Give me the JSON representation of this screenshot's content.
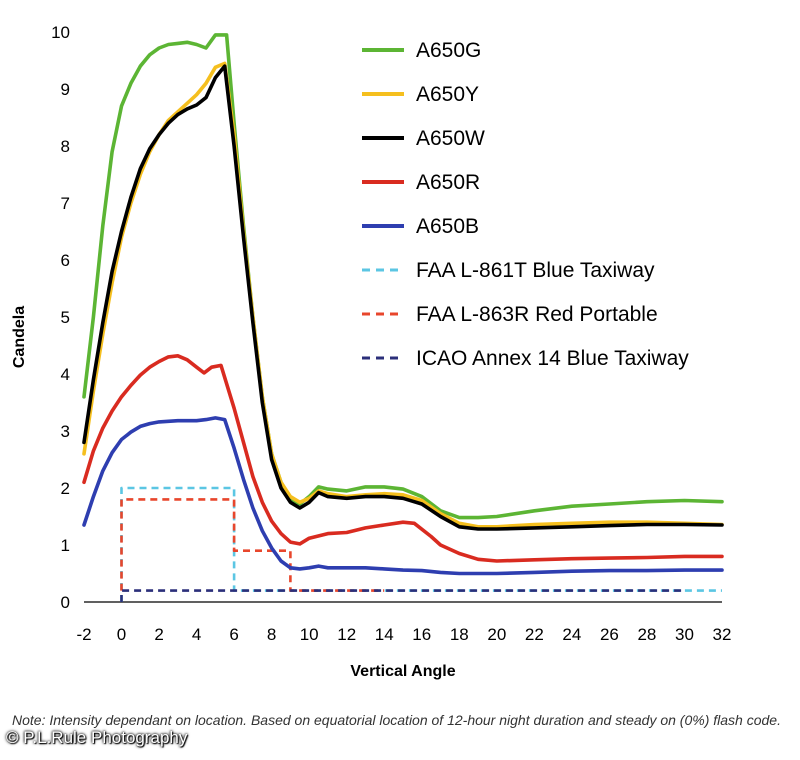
{
  "chart_data": {
    "type": "line",
    "xlabel": "Vertical Angle",
    "ylabel": "Candela",
    "xlim": [
      -2,
      32
    ],
    "ylim": [
      0,
      10
    ],
    "xticks": [
      "-2",
      "0",
      "2",
      "4",
      "6",
      "8",
      "10",
      "12",
      "14",
      "16",
      "18",
      "20",
      "22",
      "24",
      "26",
      "28",
      "30",
      "32"
    ],
    "yticks": [
      "0",
      "1",
      "2",
      "3",
      "4",
      "5",
      "6",
      "7",
      "8",
      "9",
      "10"
    ],
    "legend_position": "top-right",
    "series": [
      {
        "name": "A650G",
        "color": "#5cb534",
        "style": "solid",
        "points": [
          [
            -2,
            3.6
          ],
          [
            -1.5,
            5.0
          ],
          [
            -1,
            6.6
          ],
          [
            -0.5,
            7.9
          ],
          [
            0,
            8.7
          ],
          [
            0.5,
            9.1
          ],
          [
            1,
            9.4
          ],
          [
            1.5,
            9.6
          ],
          [
            2,
            9.72
          ],
          [
            2.5,
            9.78
          ],
          [
            3,
            9.8
          ],
          [
            3.5,
            9.82
          ],
          [
            4,
            9.78
          ],
          [
            4.5,
            9.72
          ],
          [
            5,
            9.95
          ],
          [
            5.6,
            9.95
          ],
          [
            6,
            8.4
          ],
          [
            6.5,
            6.6
          ],
          [
            7,
            5.0
          ],
          [
            7.5,
            3.6
          ],
          [
            8,
            2.6
          ],
          [
            8.5,
            2.1
          ],
          [
            9,
            1.8
          ],
          [
            9.5,
            1.72
          ],
          [
            10,
            1.85
          ],
          [
            10.5,
            2.02
          ],
          [
            11,
            1.98
          ],
          [
            12,
            1.95
          ],
          [
            13,
            2.02
          ],
          [
            14,
            2.02
          ],
          [
            15,
            1.98
          ],
          [
            16,
            1.85
          ],
          [
            17,
            1.6
          ],
          [
            18,
            1.48
          ],
          [
            19,
            1.48
          ],
          [
            20,
            1.5
          ],
          [
            22,
            1.6
          ],
          [
            24,
            1.68
          ],
          [
            26,
            1.72
          ],
          [
            28,
            1.76
          ],
          [
            30,
            1.78
          ],
          [
            32,
            1.76
          ]
        ]
      },
      {
        "name": "A650Y",
        "color": "#f5bf1e",
        "style": "solid",
        "points": [
          [
            -2,
            2.6
          ],
          [
            -1.5,
            3.7
          ],
          [
            -1,
            4.7
          ],
          [
            -0.5,
            5.6
          ],
          [
            0,
            6.4
          ],
          [
            0.5,
            7.0
          ],
          [
            1,
            7.5
          ],
          [
            1.5,
            7.9
          ],
          [
            2,
            8.2
          ],
          [
            2.5,
            8.45
          ],
          [
            3,
            8.6
          ],
          [
            3.5,
            8.75
          ],
          [
            4,
            8.9
          ],
          [
            4.5,
            9.1
          ],
          [
            5,
            9.38
          ],
          [
            5.5,
            9.45
          ],
          [
            6,
            8.2
          ],
          [
            6.5,
            6.5
          ],
          [
            7,
            5.0
          ],
          [
            7.5,
            3.6
          ],
          [
            8,
            2.6
          ],
          [
            8.5,
            2.1
          ],
          [
            9,
            1.85
          ],
          [
            9.5,
            1.75
          ],
          [
            10,
            1.82
          ],
          [
            10.5,
            1.95
          ],
          [
            11,
            1.9
          ],
          [
            12,
            1.85
          ],
          [
            13,
            1.88
          ],
          [
            14,
            1.9
          ],
          [
            15,
            1.88
          ],
          [
            16,
            1.78
          ],
          [
            17,
            1.55
          ],
          [
            18,
            1.38
          ],
          [
            19,
            1.32
          ],
          [
            20,
            1.32
          ],
          [
            22,
            1.36
          ],
          [
            24,
            1.38
          ],
          [
            26,
            1.4
          ],
          [
            28,
            1.4
          ],
          [
            30,
            1.38
          ],
          [
            32,
            1.36
          ]
        ]
      },
      {
        "name": "A650W",
        "color": "#000000",
        "style": "solid",
        "points": [
          [
            -2,
            2.8
          ],
          [
            -1.5,
            3.9
          ],
          [
            -1,
            4.9
          ],
          [
            -0.5,
            5.8
          ],
          [
            0,
            6.5
          ],
          [
            0.5,
            7.1
          ],
          [
            1,
            7.6
          ],
          [
            1.5,
            7.95
          ],
          [
            2,
            8.2
          ],
          [
            2.5,
            8.4
          ],
          [
            3,
            8.55
          ],
          [
            3.5,
            8.65
          ],
          [
            4,
            8.72
          ],
          [
            4.5,
            8.85
          ],
          [
            5,
            9.2
          ],
          [
            5.5,
            9.4
          ],
          [
            6,
            8.0
          ],
          [
            6.5,
            6.4
          ],
          [
            7,
            4.9
          ],
          [
            7.5,
            3.5
          ],
          [
            8,
            2.5
          ],
          [
            8.5,
            2.0
          ],
          [
            9,
            1.75
          ],
          [
            9.5,
            1.65
          ],
          [
            10,
            1.75
          ],
          [
            10.5,
            1.92
          ],
          [
            11,
            1.85
          ],
          [
            12,
            1.82
          ],
          [
            13,
            1.85
          ],
          [
            14,
            1.85
          ],
          [
            15,
            1.82
          ],
          [
            16,
            1.72
          ],
          [
            17,
            1.5
          ],
          [
            18,
            1.32
          ],
          [
            19,
            1.28
          ],
          [
            20,
            1.28
          ],
          [
            22,
            1.3
          ],
          [
            24,
            1.32
          ],
          [
            26,
            1.34
          ],
          [
            28,
            1.36
          ],
          [
            30,
            1.36
          ],
          [
            32,
            1.35
          ]
        ]
      },
      {
        "name": "A650R",
        "color": "#d92b20",
        "style": "solid",
        "points": [
          [
            -2,
            2.1
          ],
          [
            -1.5,
            2.65
          ],
          [
            -1,
            3.05
          ],
          [
            -0.5,
            3.35
          ],
          [
            0,
            3.6
          ],
          [
            0.5,
            3.8
          ],
          [
            1,
            3.98
          ],
          [
            1.5,
            4.12
          ],
          [
            2,
            4.22
          ],
          [
            2.5,
            4.3
          ],
          [
            3,
            4.32
          ],
          [
            3.5,
            4.25
          ],
          [
            4,
            4.12
          ],
          [
            4.4,
            4.02
          ],
          [
            4.8,
            4.12
          ],
          [
            5.3,
            4.15
          ],
          [
            6,
            3.4
          ],
          [
            6.5,
            2.8
          ],
          [
            7,
            2.2
          ],
          [
            7.5,
            1.75
          ],
          [
            8,
            1.42
          ],
          [
            8.5,
            1.2
          ],
          [
            9,
            1.05
          ],
          [
            9.5,
            1.02
          ],
          [
            10,
            1.12
          ],
          [
            11,
            1.2
          ],
          [
            12,
            1.22
          ],
          [
            13,
            1.3
          ],
          [
            14,
            1.35
          ],
          [
            15,
            1.4
          ],
          [
            15.6,
            1.38
          ],
          [
            16.5,
            1.15
          ],
          [
            17,
            1.0
          ],
          [
            18,
            0.85
          ],
          [
            19,
            0.75
          ],
          [
            20,
            0.72
          ],
          [
            22,
            0.74
          ],
          [
            24,
            0.76
          ],
          [
            26,
            0.77
          ],
          [
            28,
            0.78
          ],
          [
            30,
            0.8
          ],
          [
            32,
            0.8
          ]
        ]
      },
      {
        "name": "A650B",
        "color": "#2e3eb0",
        "style": "solid",
        "points": [
          [
            -2,
            1.35
          ],
          [
            -1.5,
            1.85
          ],
          [
            -1,
            2.3
          ],
          [
            -0.5,
            2.62
          ],
          [
            0,
            2.85
          ],
          [
            0.5,
            2.98
          ],
          [
            1,
            3.08
          ],
          [
            1.5,
            3.13
          ],
          [
            2,
            3.16
          ],
          [
            3,
            3.18
          ],
          [
            4,
            3.18
          ],
          [
            4.5,
            3.2
          ],
          [
            5,
            3.23
          ],
          [
            5.5,
            3.2
          ],
          [
            6,
            2.7
          ],
          [
            6.5,
            2.15
          ],
          [
            7,
            1.65
          ],
          [
            7.5,
            1.25
          ],
          [
            8,
            0.95
          ],
          [
            8.5,
            0.72
          ],
          [
            9,
            0.6
          ],
          [
            9.5,
            0.58
          ],
          [
            10,
            0.6
          ],
          [
            10.5,
            0.63
          ],
          [
            11,
            0.6
          ],
          [
            12,
            0.6
          ],
          [
            13,
            0.6
          ],
          [
            14,
            0.58
          ],
          [
            15,
            0.56
          ],
          [
            16,
            0.55
          ],
          [
            17,
            0.52
          ],
          [
            18,
            0.5
          ],
          [
            20,
            0.5
          ],
          [
            22,
            0.52
          ],
          [
            24,
            0.54
          ],
          [
            26,
            0.55
          ],
          [
            28,
            0.55
          ],
          [
            30,
            0.56
          ],
          [
            32,
            0.56
          ]
        ]
      },
      {
        "name": "FAA L-861T Blue Taxiway",
        "color": "#5bc6e3",
        "style": "dashed",
        "points": [
          [
            0,
            0
          ],
          [
            0,
            2
          ],
          [
            6,
            2
          ],
          [
            6,
            0.2
          ],
          [
            32,
            0.2
          ]
        ]
      },
      {
        "name": "FAA L-863R Red Portable",
        "color": "#e8462c",
        "style": "dashed",
        "points": [
          [
            0,
            0.2
          ],
          [
            0,
            1.8
          ],
          [
            6,
            1.8
          ],
          [
            6,
            0.9
          ],
          [
            9,
            0.9
          ],
          [
            9,
            0.2
          ],
          [
            14,
            0.2
          ]
        ]
      },
      {
        "name": "ICAO Annex 14 Blue Taxiway",
        "color": "#2b2f7a",
        "style": "dashed",
        "points": [
          [
            0,
            0
          ],
          [
            0,
            0.2
          ],
          [
            30,
            0.2
          ]
        ]
      }
    ]
  },
  "note": "Note: Intensity dependant on location. Based on equatorial location of 12-hour night duration and steady on (0%) flash code.",
  "credit": "© P.L.Rule Photography"
}
